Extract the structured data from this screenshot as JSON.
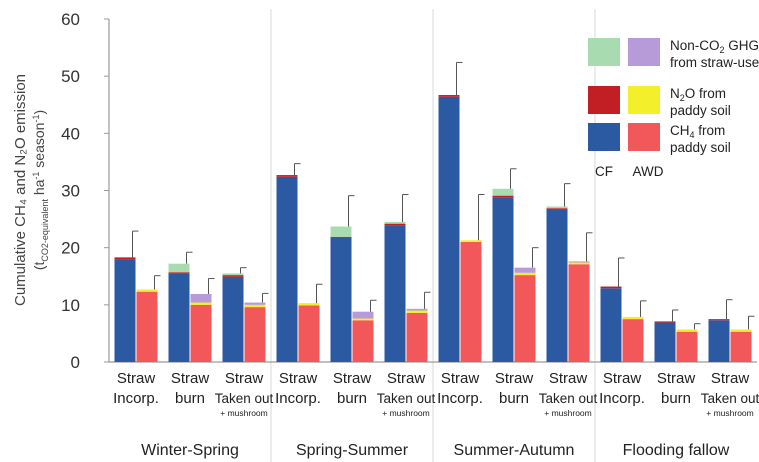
{
  "chart_data": {
    "type": "bar",
    "subtype": "stacked-grouped",
    "ylim": [
      0,
      60
    ],
    "yticks": [
      0,
      10,
      20,
      30,
      40,
      50,
      60
    ],
    "grid": "vertical separators between seasons",
    "ylabel": {
      "line1": "Cumulative CH₄ and N₂O emission",
      "line2_prefix": "(t",
      "line2_sub": "CO2-equivalent",
      "line2_mid": " ha",
      "line2_sup1": "-1",
      "line2_after": " season",
      "line2_sup2": "-1",
      "line2_end": ")"
    },
    "seasons": [
      {
        "name": "Winter-Spring",
        "treatments": [
          {
            "label1": "Straw",
            "label2": "Incorp.",
            "cf": {
              "ch4": 18.0,
              "n2o": 0.3,
              "straw": 0.0,
              "err": 4.6
            },
            "awd": {
              "ch4": 12.3,
              "n2o": 0.4,
              "straw": 0.0,
              "err": 2.4
            }
          },
          {
            "label1": "Straw",
            "label2": "burn",
            "cf": {
              "ch4": 15.5,
              "n2o": 0.2,
              "straw": 1.5,
              "err": 2.0
            },
            "awd": {
              "ch4": 10.0,
              "n2o": 0.4,
              "straw": 1.5,
              "err": 2.7
            }
          },
          {
            "label1": "Straw",
            "label2": "Taken out",
            "label3": "+ mushroom",
            "cf": {
              "ch4": 14.9,
              "n2o": 0.3,
              "straw": 0.3,
              "err": 1.0
            },
            "awd": {
              "ch4": 9.6,
              "n2o": 0.4,
              "straw": 0.4,
              "err": 1.6
            }
          }
        ]
      },
      {
        "name": "Spring-Summer",
        "treatments": [
          {
            "label1": "Straw",
            "label2": "Incorp.",
            "cf": {
              "ch4": 32.4,
              "n2o": 0.3,
              "straw": 0.0,
              "err": 2.0
            },
            "awd": {
              "ch4": 9.9,
              "n2o": 0.4,
              "straw": 0.0,
              "err": 3.3
            }
          },
          {
            "label1": "Straw",
            "label2": "burn",
            "cf": {
              "ch4": 21.7,
              "n2o": 0.2,
              "straw": 1.8,
              "err": 5.4
            },
            "awd": {
              "ch4": 7.3,
              "n2o": 0.3,
              "straw": 1.2,
              "err": 2.0
            }
          },
          {
            "label1": "Straw",
            "label2": "Taken out",
            "label3": "+ mushroom",
            "cf": {
              "ch4": 23.9,
              "n2o": 0.3,
              "straw": 0.3,
              "err": 4.8
            },
            "awd": {
              "ch4": 8.6,
              "n2o": 0.4,
              "straw": 0.3,
              "err": 2.9
            }
          }
        ]
      },
      {
        "name": "Summer-Autumn",
        "treatments": [
          {
            "label1": "Straw",
            "label2": "Incorp.",
            "cf": {
              "ch4": 46.4,
              "n2o": 0.3,
              "straw": 0.0,
              "err": 5.7
            },
            "awd": {
              "ch4": 21.0,
              "n2o": 0.3,
              "straw": 0.0,
              "err": 8.0
            }
          },
          {
            "label1": "Straw",
            "label2": "burn",
            "cf": {
              "ch4": 28.8,
              "n2o": 0.3,
              "straw": 1.2,
              "err": 3.5
            },
            "awd": {
              "ch4": 15.2,
              "n2o": 0.4,
              "straw": 0.9,
              "err": 3.5
            }
          },
          {
            "label1": "Straw",
            "label2": "Taken out",
            "label3": "+ mushroom",
            "cf": {
              "ch4": 26.6,
              "n2o": 0.3,
              "straw": 0.3,
              "err": 4.0
            },
            "awd": {
              "ch4": 17.1,
              "n2o": 0.3,
              "straw": 0.2,
              "err": 5.0
            }
          }
        ]
      },
      {
        "name": "Flooding fallow",
        "treatments": [
          {
            "label1": "Straw",
            "label2": "Incorp.",
            "cf": {
              "ch4": 12.9,
              "n2o": 0.3,
              "straw": 0.0,
              "err": 5.0
            },
            "awd": {
              "ch4": 7.5,
              "n2o": 0.4,
              "straw": 0.0,
              "err": 2.8
            }
          },
          {
            "label1": "Straw",
            "label2": "burn",
            "cf": {
              "ch4": 6.9,
              "n2o": 0.2,
              "straw": 0.0,
              "err": 2.0
            },
            "awd": {
              "ch4": 5.3,
              "n2o": 0.4,
              "straw": 0.0,
              "err": 1.0
            }
          },
          {
            "label1": "Straw",
            "label2": "Taken out",
            "label3": "+ mushroom",
            "cf": {
              "ch4": 7.3,
              "n2o": 0.2,
              "straw": 0.0,
              "err": 3.4
            },
            "awd": {
              "ch4": 5.3,
              "n2o": 0.4,
              "straw": 0.0,
              "err": 2.3
            }
          }
        ]
      }
    ],
    "legend": {
      "placement": "top-right",
      "entries": [
        {
          "text": "Non-CO",
          "sub": "2",
          "after": " GHGs",
          "line2": "from straw-use",
          "cf_color": "#a8dcb0",
          "awd_color": "#b79ad8"
        },
        {
          "text": "N",
          "sub": "2",
          "after": "O from",
          "line2": "paddy soil",
          "cf_color": "#c21f24",
          "awd_color": "#f3ef2a"
        },
        {
          "text": "CH",
          "sub": "4",
          "after": " from",
          "line2": "paddy soil",
          "cf_color": "#2b5aa3",
          "awd_color": "#f2585a"
        }
      ],
      "cf_label": "CF",
      "awd_label": "AWD"
    },
    "colors": {
      "cf_ch4": "#2b5aa3",
      "cf_n2o": "#c21f24",
      "cf_straw": "#a8dcb0",
      "awd_ch4": "#f2585a",
      "awd_n2o": "#f3ef2a",
      "awd_straw": "#b79ad8",
      "axis": "#9a9a9a",
      "separator": "#d9d9d9",
      "error": "#555555"
    }
  }
}
